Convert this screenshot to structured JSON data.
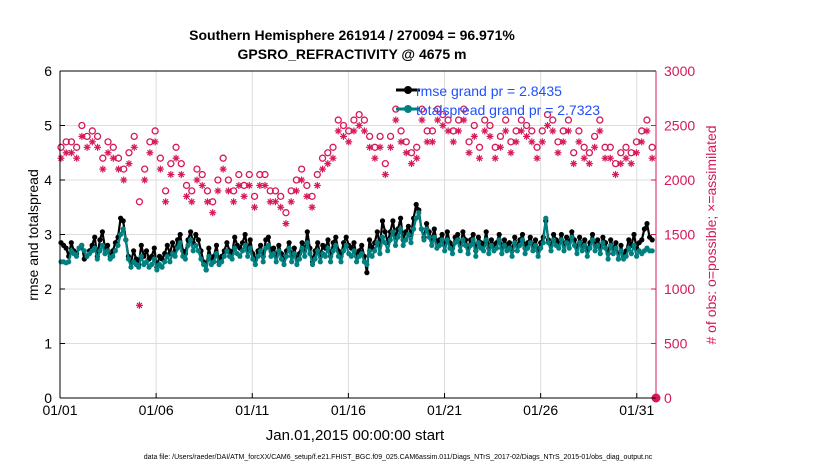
{
  "chart_data": {
    "type": "line",
    "title_line1": "Southern Hemisphere 261914 / 270094 = 96.971%",
    "title_line2": "GPSRO_REFRACTIVITY @ 4675 m",
    "xlabel": "Jan.01,2015 00:00:00 start",
    "ylabel_left": "rmse and totalspread",
    "ylabel_right": "# of obs: o=possible; ×=assimilated",
    "footer": "data file: /Users/raeder/DAI/ATM_forcXX/CAM6_setup/f.e21.FHIST_BGC.f09_025.CAM6assim.011/Diags_NTrS_2017-02/Diags_NTrS_2015-01/obs_diag_output.nc",
    "x_ticks": [
      {
        "day": 1,
        "label": "01/01"
      },
      {
        "day": 6,
        "label": "01/06"
      },
      {
        "day": 11,
        "label": "01/11"
      },
      {
        "day": 16,
        "label": "01/16"
      },
      {
        "day": 21,
        "label": "01/21"
      },
      {
        "day": 26,
        "label": "01/26"
      },
      {
        "day": 31,
        "label": "01/31"
      }
    ],
    "xlim": [
      1,
      32
    ],
    "ylim_left": [
      0,
      6
    ],
    "yticks_left": [
      "0",
      "1",
      "2",
      "3",
      "4",
      "5",
      "6"
    ],
    "ylim_right": [
      0,
      3000
    ],
    "yticks_right": [
      "0",
      "500",
      "1000",
      "1500",
      "2000",
      "2500",
      "3000"
    ],
    "grid": true,
    "legend_position": "top-right",
    "colors": {
      "rmse": "#000000",
      "spread": "#008080",
      "obs": "#d6185a",
      "legend_text": "#1f4fff"
    },
    "series": [
      {
        "name": "rmse grand pr = 2.8435",
        "values": [
          2.85,
          2.8,
          2.75,
          2.6,
          2.85,
          2.7,
          2.65,
          2.75,
          2.8,
          2.55,
          2.6,
          2.7,
          2.8,
          2.95,
          2.6,
          2.9,
          3.05,
          2.75,
          2.8,
          2.6,
          2.7,
          2.85,
          2.95,
          3.3,
          3.25,
          2.9,
          2.6,
          2.5,
          2.7,
          2.55,
          2.45,
          2.8,
          2.6,
          2.7,
          2.55,
          2.6,
          2.75,
          2.4,
          2.6,
          2.55,
          2.65,
          2.8,
          2.65,
          2.85,
          2.7,
          2.9,
          3.0,
          2.7,
          2.65,
          2.9,
          3.05,
          2.85,
          3.0,
          2.9,
          2.7,
          2.5,
          2.35,
          2.75,
          2.55,
          2.6,
          2.8,
          2.5,
          2.6,
          2.7,
          2.85,
          2.7,
          2.65,
          2.95,
          2.8,
          2.75,
          2.85,
          3.0,
          2.7,
          2.9,
          2.65,
          2.55,
          2.7,
          2.8,
          2.6,
          2.9,
          2.95,
          2.7,
          2.75,
          2.6,
          2.8,
          2.65,
          2.55,
          2.7,
          2.85,
          2.6,
          2.75,
          2.55,
          2.65,
          2.85,
          2.7,
          3.05,
          2.75,
          2.5,
          2.7,
          2.85,
          2.6,
          2.8,
          2.75,
          2.9,
          2.6,
          2.85,
          2.95,
          2.7,
          2.6,
          2.85,
          2.95,
          2.8,
          2.75,
          2.85,
          2.6,
          2.7,
          2.8,
          2.6,
          2.3,
          2.9,
          2.75,
          2.85,
          3.05,
          2.8,
          3.25,
          3.05,
          2.85,
          3.05,
          3.25,
          2.95,
          3.1,
          3.3,
          2.9,
          3.05,
          3.15,
          3.0,
          3.3,
          3.55,
          3.45,
          3.1,
          2.95,
          3.2,
          3.05,
          2.9,
          3.1,
          2.85,
          2.9,
          3.0,
          2.8,
          3.05,
          2.85,
          2.75,
          2.95,
          3.0,
          2.8,
          3.05,
          2.9,
          2.75,
          2.9,
          3.0,
          2.7,
          2.95,
          2.85,
          2.8,
          3.05,
          2.75,
          2.9,
          2.8,
          2.85,
          3.0,
          2.75,
          2.9,
          2.8,
          2.85,
          2.7,
          2.95,
          2.8,
          2.9,
          3.0,
          2.75,
          2.85,
          2.95,
          2.8,
          2.9,
          2.7,
          2.85,
          2.95,
          3.25,
          2.9,
          2.8,
          3.0,
          2.9,
          2.85,
          3.0,
          2.8,
          2.95,
          2.85,
          3.05,
          2.9,
          2.75,
          2.95,
          2.8,
          2.9,
          2.7,
          2.85,
          3.0,
          2.8,
          2.9,
          2.75,
          2.95,
          2.85,
          2.65,
          2.9,
          2.75,
          2.85,
          2.55,
          2.8,
          2.6,
          2.7,
          2.9,
          2.8,
          3.0,
          2.75,
          2.85,
          2.9,
          3.1,
          3.2,
          2.95,
          2.9
        ],
        "markers": "filled-circle"
      },
      {
        "name": "totalspread grand pr = 2.7323",
        "values": [
          2.5,
          2.5,
          2.48,
          2.5,
          2.7,
          2.65,
          2.6,
          2.75,
          2.8,
          2.7,
          2.6,
          2.65,
          2.7,
          2.75,
          2.55,
          2.7,
          2.8,
          2.65,
          2.7,
          2.55,
          2.6,
          2.7,
          2.8,
          3.0,
          3.1,
          2.9,
          2.55,
          2.4,
          2.5,
          2.45,
          2.4,
          2.6,
          2.45,
          2.5,
          2.4,
          2.45,
          2.55,
          2.35,
          2.45,
          2.4,
          2.5,
          2.6,
          2.5,
          2.65,
          2.6,
          2.75,
          2.85,
          2.6,
          2.55,
          2.8,
          2.9,
          2.7,
          2.8,
          2.7,
          2.55,
          2.45,
          2.35,
          2.6,
          2.45,
          2.5,
          2.65,
          2.45,
          2.5,
          2.6,
          2.7,
          2.6,
          2.55,
          2.75,
          2.65,
          2.6,
          2.7,
          2.8,
          2.6,
          2.75,
          2.55,
          2.45,
          2.6,
          2.7,
          2.5,
          2.75,
          2.8,
          2.6,
          2.65,
          2.5,
          2.7,
          2.55,
          2.45,
          2.6,
          2.75,
          2.5,
          2.65,
          2.45,
          2.55,
          2.75,
          2.6,
          2.85,
          2.65,
          2.45,
          2.55,
          2.7,
          2.5,
          2.65,
          2.6,
          2.75,
          2.5,
          2.7,
          2.8,
          2.6,
          2.5,
          2.7,
          2.8,
          2.65,
          2.6,
          2.7,
          2.5,
          2.6,
          2.65,
          2.5,
          2.45,
          2.7,
          2.6,
          2.7,
          2.85,
          2.65,
          2.95,
          2.85,
          2.7,
          2.9,
          3.05,
          2.8,
          2.95,
          3.1,
          2.8,
          2.9,
          3.0,
          2.85,
          3.1,
          3.3,
          3.4,
          3.1,
          2.9,
          3.1,
          2.95,
          2.8,
          2.95,
          2.75,
          2.8,
          2.9,
          2.7,
          2.9,
          2.75,
          2.65,
          2.85,
          2.9,
          2.7,
          2.9,
          2.8,
          2.65,
          2.8,
          2.9,
          2.6,
          2.85,
          2.75,
          2.7,
          2.9,
          2.65,
          2.8,
          2.7,
          2.75,
          2.9,
          2.65,
          2.8,
          2.7,
          2.75,
          2.6,
          2.85,
          2.7,
          2.8,
          2.9,
          2.65,
          2.75,
          2.85,
          2.7,
          2.8,
          2.6,
          2.75,
          2.85,
          3.3,
          2.85,
          2.7,
          2.9,
          2.8,
          2.75,
          2.9,
          2.7,
          2.85,
          2.75,
          2.95,
          2.8,
          2.65,
          2.85,
          2.7,
          2.8,
          2.6,
          2.75,
          2.9,
          2.7,
          2.8,
          2.65,
          2.85,
          2.75,
          2.55,
          2.8,
          2.65,
          2.75,
          2.55,
          2.7,
          2.55,
          2.6,
          2.75,
          2.65,
          2.8,
          2.6,
          2.7,
          2.65,
          2.7,
          2.75,
          2.7,
          2.7
        ],
        "markers": "filled-circle"
      }
    ],
    "obs_possible": [
      2300,
      2250,
      2350,
      2400,
      2350,
      2450,
      2300,
      2450,
      2500,
      2450,
      2400,
      2350,
      2450,
      2450,
      2400,
      2300,
      2200,
      2400,
      2350,
      2450,
      2300,
      2250,
      2200,
      2150,
      2100,
      2200,
      2250,
      2350,
      2400,
      2300,
      1800,
      1950,
      2100,
      2250,
      2350,
      2400,
      2450,
      2350,
      2200,
      2100,
      1900,
      2050,
      2150,
      2250,
      2300,
      2200,
      2150,
      2050,
      1950,
      1850,
      1900,
      2000,
      2100,
      2150,
      2050,
      1950,
      1900,
      1850,
      1800,
      1900,
      2000,
      2100,
      2200,
      2100,
      2000,
      1950,
      1900,
      1950,
      2050,
      2000,
      1950,
      2100,
      2050,
      2150,
      1850,
      2000,
      2050,
      1950,
      2050,
      2000,
      1900,
      1800,
      1900,
      1950,
      1850,
      1750,
      1700,
      1800,
      1900,
      1950,
      2000,
      2050,
      2100,
      2000,
      1950,
      1900,
      1850,
      1950,
      2050,
      2150,
      2200,
      2150,
      2250,
      2350,
      2300,
      2400,
      2550,
      2450,
      2500,
      2650,
      2450,
      2350,
      2550,
      2700,
      2600,
      2500,
      2550,
      2450,
      2400,
      2350,
      2300,
      2250,
      2400,
      2300,
      2150,
      2250,
      2400,
      2550,
      2650,
      2500,
      2450,
      2550,
      2350,
      2400,
      2250,
      2450,
      2300,
      2550,
      2650,
      2500,
      2450,
      2550,
      2450,
      2550,
      2650,
      2500,
      2600,
      2450,
      2550,
      2350,
      2450,
      2650,
      2550,
      2400,
      2650,
      2550,
      2350,
      2450,
      2500,
      2350,
      2300,
      2450,
      2550,
      2400,
      2500,
      2550,
      2300,
      2250,
      2400,
      2500,
      2550,
      2400,
      2350,
      2500,
      2450,
      2350,
      2550,
      2600,
      2500,
      2550,
      2450,
      2400,
      2300,
      2500,
      2450,
      2550,
      2600,
      2500,
      2550,
      2450,
      2350,
      2300,
      2450,
      2600,
      2550,
      2300,
      2250,
      2500,
      2450,
      2400,
      2300,
      2200,
      2250,
      2300,
      2400,
      2500,
      2550,
      2450,
      2300,
      2250,
      2300,
      2200,
      2150,
      2300,
      2250,
      2350,
      2300,
      2200,
      2250,
      2300,
      2350,
      2400,
      2450,
      2500,
      2550,
      2450,
      2300
    ],
    "obs_assimilated": [
      2200,
      2150,
      2250,
      2300,
      2250,
      2350,
      2200,
      2350,
      2400,
      2350,
      2300,
      2250,
      2350,
      2350,
      2300,
      2200,
      2100,
      2300,
      2250,
      2350,
      2200,
      2150,
      2100,
      2050,
      2000,
      2100,
      2150,
      2250,
      2300,
      2200,
      850,
      1850,
      2000,
      2150,
      2250,
      2300,
      2350,
      2250,
      2100,
      2000,
      1800,
      1950,
      2050,
      2150,
      2200,
      2100,
      2050,
      1950,
      1850,
      1750,
      1800,
      1900,
      2000,
      2050,
      1950,
      1850,
      1800,
      1750,
      1700,
      1800,
      1900,
      2000,
      2100,
      2000,
      1900,
      1850,
      1800,
      1850,
      1950,
      1900,
      1850,
      2000,
      1950,
      2050,
      1750,
      1900,
      1950,
      1850,
      1950,
      1900,
      1800,
      1700,
      1800,
      1850,
      1750,
      1650,
      1600,
      1700,
      1800,
      1850,
      1900,
      1950,
      2000,
      1900,
      1850,
      1800,
      1750,
      1850,
      1950,
      2050,
      2100,
      2050,
      2150,
      2250,
      2200,
      2300,
      2450,
      2350,
      2400,
      2550,
      2350,
      2250,
      2450,
      2600,
      2500,
      2400,
      2450,
      2350,
      2300,
      2250,
      2200,
      2150,
      2300,
      2200,
      2050,
      2150,
      2300,
      2450,
      2550,
      2400,
      2350,
      2450,
      2250,
      2300,
      2150,
      2350,
      2200,
      2450,
      2550,
      2400,
      2350,
      2450,
      2350,
      2450,
      2550,
      2400,
      2500,
      2350,
      2450,
      2250,
      2350,
      2550,
      2450,
      2300,
      2550,
      2450,
      2250,
      2350,
      2400,
      2250,
      2200,
      2350,
      2450,
      2300,
      2400,
      2450,
      2200,
      2150,
      2300,
      2400,
      2450,
      2300,
      2250,
      2400,
      2350,
      2250,
      2450,
      2500,
      2400,
      2450,
      2350,
      2300,
      2200,
      2400,
      2350,
      2450,
      2500,
      2400,
      2450,
      2350,
      2250,
      2200,
      2350,
      2500,
      2450,
      2200,
      2150,
      2400,
      2350,
      2300,
      2200,
      2100,
      2150,
      2200,
      2300,
      2400,
      2450,
      2350,
      2200,
      2150,
      2200,
      2100,
      2050,
      2200,
      2150,
      2250,
      2200,
      2100,
      2150,
      2200,
      2250,
      2300,
      2350,
      2400,
      2450,
      2350,
      2200
    ],
    "final_obs_marker_value": 0
  }
}
